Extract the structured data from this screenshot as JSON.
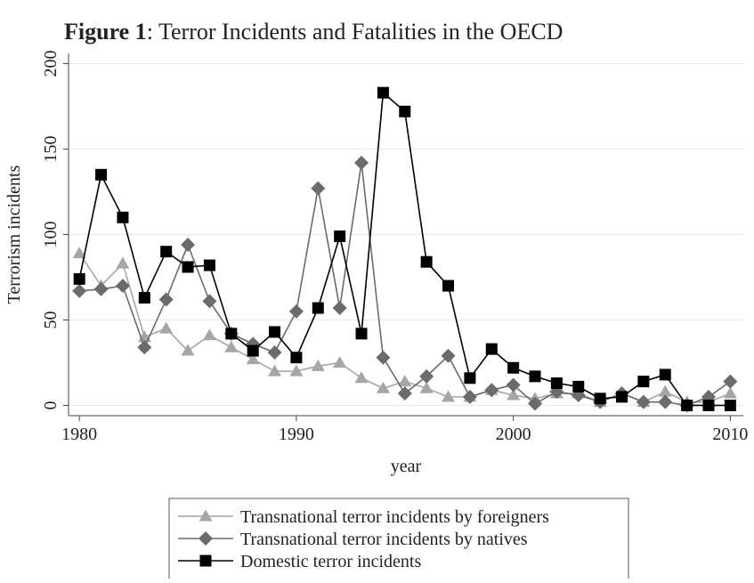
{
  "chart_data": {
    "type": "line",
    "figure_label": "Figure 1",
    "title": ": Terror Incidents and Fatalities in the OECD",
    "x_label": "year",
    "y_label": "Terrorism incidents",
    "x": [
      1980,
      1981,
      1982,
      1983,
      1984,
      1985,
      1986,
      1987,
      1988,
      1989,
      1990,
      1991,
      1992,
      1993,
      1994,
      1995,
      1996,
      1997,
      1998,
      1999,
      2000,
      2001,
      2002,
      2003,
      2004,
      2005,
      2006,
      2007,
      2008,
      2009,
      2010
    ],
    "xlim": [
      1979.5,
      2010.6
    ],
    "xticks": [
      1980,
      1990,
      2000,
      2010
    ],
    "ylim": [
      -6,
      206
    ],
    "yticks": [
      0,
      50,
      100,
      150,
      200
    ],
    "grid": true,
    "legend_position": "bottom",
    "series": [
      {
        "name": "Transnational terror incidents by foreigners",
        "color": "#a6a6a6",
        "marker": "triangle",
        "values": [
          89,
          70,
          83,
          40,
          45,
          32,
          41,
          34,
          27,
          20,
          20,
          23,
          25,
          16,
          10,
          14,
          10,
          5,
          5,
          9,
          6,
          4,
          7,
          7,
          2,
          7,
          2,
          8,
          2,
          2,
          7
        ]
      },
      {
        "name": "Transnational terror incidents by natives",
        "color": "#6b6b6b",
        "marker": "diamond",
        "values": [
          67,
          68,
          70,
          34,
          62,
          94,
          61,
          42,
          36,
          31,
          55,
          127,
          57,
          142,
          28,
          7,
          17,
          29,
          5,
          9,
          12,
          1,
          8,
          6,
          2,
          7,
          2,
          2,
          0,
          5,
          14
        ]
      },
      {
        "name": "Domestic terror incidents",
        "color": "#000000",
        "marker": "square",
        "values": [
          74,
          135,
          110,
          63,
          90,
          81,
          82,
          42,
          32,
          43,
          28,
          57,
          99,
          42,
          183,
          172,
          84,
          70,
          16,
          33,
          22,
          17,
          13,
          11,
          4,
          5,
          14,
          18,
          0,
          0,
          0
        ]
      }
    ]
  }
}
